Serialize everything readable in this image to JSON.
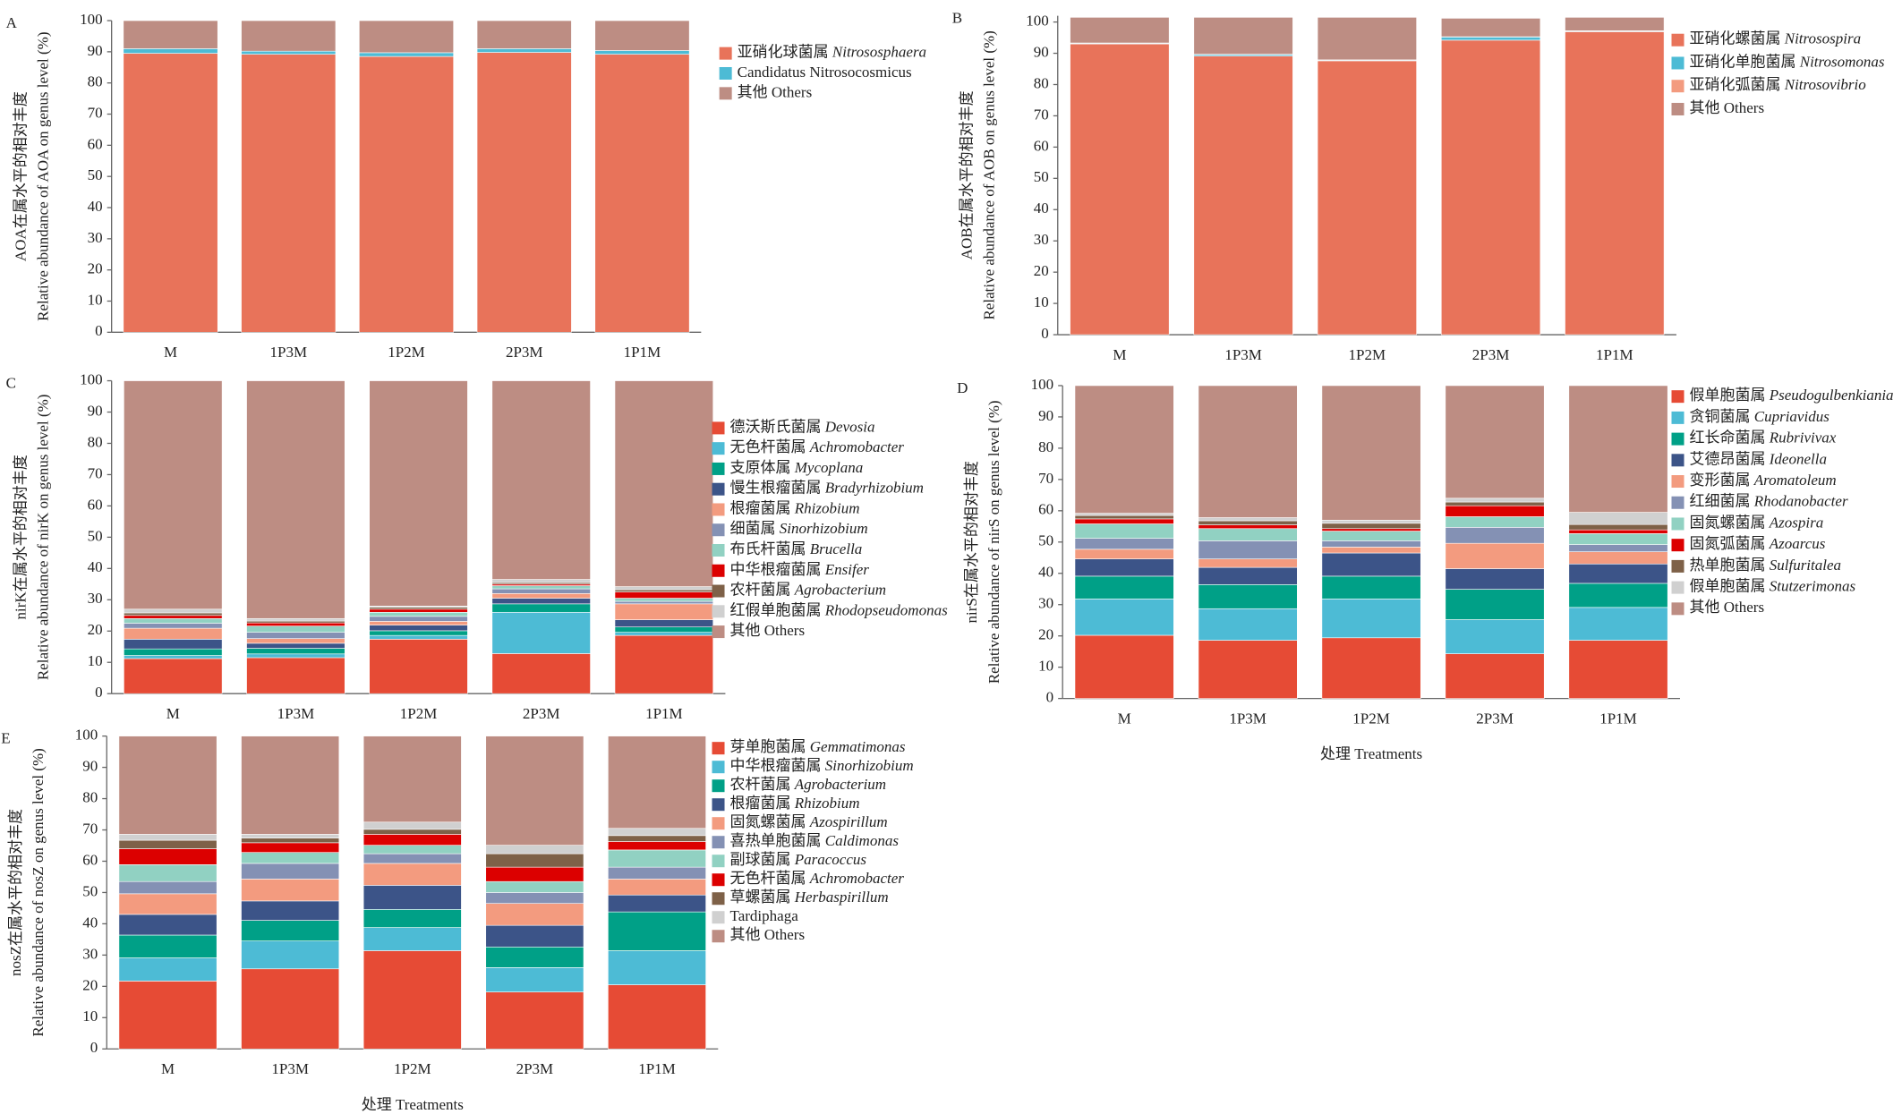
{
  "chart_data": [
    {
      "type": "stacked_bar",
      "panel": "A",
      "ylabel": [
        "AOA在属水平的相对丰度",
        "Relative abundance of AOA on genus level (%)"
      ],
      "categories": [
        "M",
        "1P3M",
        "1P2M",
        "2P3M",
        "1P1M"
      ],
      "ylim": [
        0,
        100
      ],
      "yticks": [
        0,
        10,
        20,
        30,
        40,
        50,
        60,
        70,
        80,
        90,
        100
      ],
      "series": [
        {
          "name": "亚硝化球菌属 Nitrososphaera",
          "color": "#e8735a",
          "values": [
            89.5,
            89.2,
            88.5,
            89.8,
            89.2
          ]
        },
        {
          "name": "Candidatus Nitrosocosmicus",
          "color": "#4dbbd5",
          "values": [
            1.5,
            1.0,
            1.2,
            1.2,
            1.2
          ]
        },
        {
          "name": "其他 Others",
          "color": "#bd8d83",
          "values": [
            9.0,
            9.8,
            10.3,
            9.0,
            9.6
          ]
        }
      ]
    },
    {
      "type": "stacked_bar",
      "panel": "B",
      "ylabel": [
        "AOB在属水平的相对丰度",
        "Relative abundance of AOB on genus level (%)"
      ],
      "categories": [
        "M",
        "1P3M",
        "1P2M",
        "2P3M",
        "1P1M"
      ],
      "ylim": [
        0,
        102
      ],
      "yticks": [
        0,
        10,
        20,
        30,
        40,
        50,
        60,
        70,
        80,
        90,
        100
      ],
      "series": [
        {
          "name": "亚硝化螺菌属 Nitrosospira",
          "color": "#e8735a",
          "values": [
            93.0,
            89.1,
            87.6,
            94.2,
            96.9
          ]
        },
        {
          "name": "亚硝化单胞菌属 Nitrosomonas",
          "color": "#4dbbd5",
          "values": [
            0.2,
            0.5,
            0.2,
            1.0,
            0.2
          ]
        },
        {
          "name": "亚硝化弧菌属 Nitrosovibrio",
          "color": "#f39b7f",
          "values": [
            0.1,
            0.1,
            0.1,
            0.1,
            0.1
          ]
        },
        {
          "name": "其他 Others",
          "color": "#bd8d83",
          "values": [
            8.2,
            11.8,
            13.6,
            5.9,
            4.3
          ]
        }
      ]
    },
    {
      "type": "stacked_bar",
      "panel": "C",
      "ylabel": [
        "nirK在属水平的相对丰度",
        "Relative abundance of nirK on genus level (%)"
      ],
      "categories": [
        "M",
        "1P3M",
        "1P2M",
        "2P3M",
        "1P1M"
      ],
      "ylim": [
        0,
        100
      ],
      "yticks": [
        0,
        10,
        20,
        30,
        40,
        50,
        60,
        70,
        80,
        90,
        100
      ],
      "series": [
        {
          "name": "德沃斯氏菌属 Devosia",
          "color": "#e64b35",
          "values": [
            11.2,
            11.5,
            17.4,
            12.8,
            18.6
          ]
        },
        {
          "name": "无色杆菌属 Achromobacter",
          "color": "#4dbbd5",
          "values": [
            1.0,
            1.2,
            1.2,
            13.2,
            1.0
          ]
        },
        {
          "name": "支原体属 Mycoplana",
          "color": "#00a087",
          "values": [
            2.1,
            1.8,
            1.5,
            2.7,
            1.7
          ]
        },
        {
          "name": "慢生根瘤菌属 Bradyrhizobium",
          "color": "#3c5488",
          "values": [
            3.1,
            1.6,
            1.8,
            1.8,
            2.3
          ]
        },
        {
          "name": "根瘤菌属 Rhizobium",
          "color": "#f39b7f",
          "values": [
            3.5,
            1.5,
            1.2,
            1.5,
            5.1
          ]
        },
        {
          "name": "细菌属 Sinorhizobium",
          "color": "#8491b4",
          "values": [
            1.6,
            2.0,
            1.6,
            1.5,
            0.8
          ]
        },
        {
          "name": "布氏杆菌属 Brucella",
          "color": "#91d1c2",
          "values": [
            1.5,
            2.0,
            1.3,
            1.0,
            1.0
          ]
        },
        {
          "name": "中华根瘤菌属 Ensifer",
          "color": "#dc0000",
          "values": [
            1.0,
            1.0,
            1.0,
            0.5,
            2.0
          ]
        },
        {
          "name": "农杆菌属 Agrobacterium",
          "color": "#7e6148",
          "values": [
            0.8,
            0.6,
            0.6,
            0.5,
            0.7
          ]
        },
        {
          "name": "红假单胞菌属 Rhodopseudomonas",
          "color": "#d0d0d0",
          "values": [
            1.2,
            0.8,
            0.4,
            1.0,
            1.0
          ]
        },
        {
          "name": "其他 Others",
          "color": "#bd8d83",
          "values": [
            73.0,
            76.0,
            72.0,
            63.5,
            65.8
          ]
        }
      ]
    },
    {
      "type": "stacked_bar",
      "panel": "D",
      "ylabel": [
        "nirS在属水平的相对丰度",
        "Relative abundance of nirS on genus level (%)"
      ],
      "xlabel": "处理 Treatments",
      "categories": [
        "M",
        "1P3M",
        "1P2M",
        "2P3M",
        "1P1M"
      ],
      "ylim": [
        0,
        100
      ],
      "yticks": [
        0,
        10,
        20,
        30,
        40,
        50,
        60,
        70,
        80,
        90,
        100
      ],
      "series": [
        {
          "name": "假单胞菌属 Pseudogulbenkiania",
          "color": "#e64b35",
          "values": [
            20.2,
            18.6,
            19.4,
            14.3,
            18.6
          ]
        },
        {
          "name": "贪铜菌属 Cupriavidus",
          "color": "#4dbbd5",
          "values": [
            11.6,
            10.1,
            12.4,
            10.9,
            10.5
          ]
        },
        {
          "name": "红长命菌属 Rubrivivax",
          "color": "#00a087",
          "values": [
            7.3,
            7.7,
            7.3,
            9.7,
            7.7
          ]
        },
        {
          "name": "艾德昂菌属 Ideonella",
          "color": "#3c5488",
          "values": [
            5.5,
            5.5,
            7.4,
            6.6,
            6.2
          ]
        },
        {
          "name": "变形菌属 Aromatoleum",
          "color": "#f39b7f",
          "values": [
            3.1,
            2.7,
            1.9,
            8.1,
            3.9
          ]
        },
        {
          "name": "红细菌属 Rhodanobacter",
          "color": "#8491b4",
          "values": [
            3.5,
            5.8,
            2.0,
            5.1,
            2.3
          ]
        },
        {
          "name": "固氮螺菌属 Azospira",
          "color": "#91d1c2",
          "values": [
            4.6,
            3.9,
            3.1,
            3.4,
            3.5
          ]
        },
        {
          "name": "固氮弧菌属 Azoarcus",
          "color": "#dc0000",
          "values": [
            1.6,
            1.2,
            0.8,
            3.5,
            1.2
          ]
        },
        {
          "name": "热单胞菌属 Sulfuritalea",
          "color": "#7e6148",
          "values": [
            1.1,
            1.3,
            1.7,
            1.2,
            1.7
          ]
        },
        {
          "name": "假单胞菌属 Stutzerimonas",
          "color": "#d0d0d0",
          "values": [
            0.7,
            1.0,
            1.0,
            1.2,
            3.9
          ]
        },
        {
          "name": "其他 Others",
          "color": "#bd8d83",
          "values": [
            40.8,
            42.2,
            43.0,
            36.0,
            40.5
          ]
        }
      ]
    },
    {
      "type": "stacked_bar",
      "panel": "E",
      "ylabel": [
        "nosZ在属水平的相对丰度",
        "Relative abundance of nosZ on genus level (%)"
      ],
      "xlabel": "处理 Treatments",
      "categories": [
        "M",
        "1P3M",
        "1P2M",
        "2P3M",
        "1P1M"
      ],
      "ylim": [
        0,
        100
      ],
      "yticks": [
        0,
        10,
        20,
        30,
        40,
        50,
        60,
        70,
        80,
        90,
        100
      ],
      "series": [
        {
          "name": "芽单胞菌属 Gemmatimonas",
          "color": "#e64b35",
          "values": [
            21.7,
            25.6,
            31.4,
            18.2,
            20.5
          ]
        },
        {
          "name": "中华根瘤菌属 Sinorhizobium",
          "color": "#4dbbd5",
          "values": [
            7.4,
            8.9,
            7.4,
            7.8,
            10.9
          ]
        },
        {
          "name": "农杆菌属 Agrobacterium",
          "color": "#00a087",
          "values": [
            7.3,
            6.6,
            5.8,
            6.6,
            12.4
          ]
        },
        {
          "name": "根瘤菌属 Rhizobium",
          "color": "#3c5488",
          "values": [
            6.6,
            6.2,
            7.7,
            6.9,
            5.4
          ]
        },
        {
          "name": "固氮螺菌属 Azospirillum",
          "color": "#f39b7f",
          "values": [
            6.6,
            7.0,
            7.0,
            7.0,
            5.1
          ]
        },
        {
          "name": "喜热单胞菌属 Caldimonas",
          "color": "#8491b4",
          "values": [
            3.9,
            5.0,
            3.1,
            3.5,
            3.8
          ]
        },
        {
          "name": "副球菌属 Paracoccus",
          "color": "#91d1c2",
          "values": [
            5.4,
            3.5,
            2.7,
            3.5,
            5.5
          ]
        },
        {
          "name": "无色杆菌属 Achromobacter",
          "color": "#dc0000",
          "values": [
            5.1,
            3.1,
            3.5,
            4.6,
            2.7
          ]
        },
        {
          "name": "草螺菌属 Herbaspirillum",
          "color": "#7e6148",
          "values": [
            2.7,
            1.5,
            1.6,
            4.3,
            1.9
          ]
        },
        {
          "name": "Tardiphaga",
          "color": "#d0d0d0",
          "values": [
            1.9,
            1.2,
            2.3,
            2.7,
            2.3
          ]
        },
        {
          "name": "其他 Others",
          "color": "#bd8d83",
          "values": [
            31.4,
            31.4,
            27.5,
            34.9,
            29.5
          ]
        }
      ]
    }
  ]
}
